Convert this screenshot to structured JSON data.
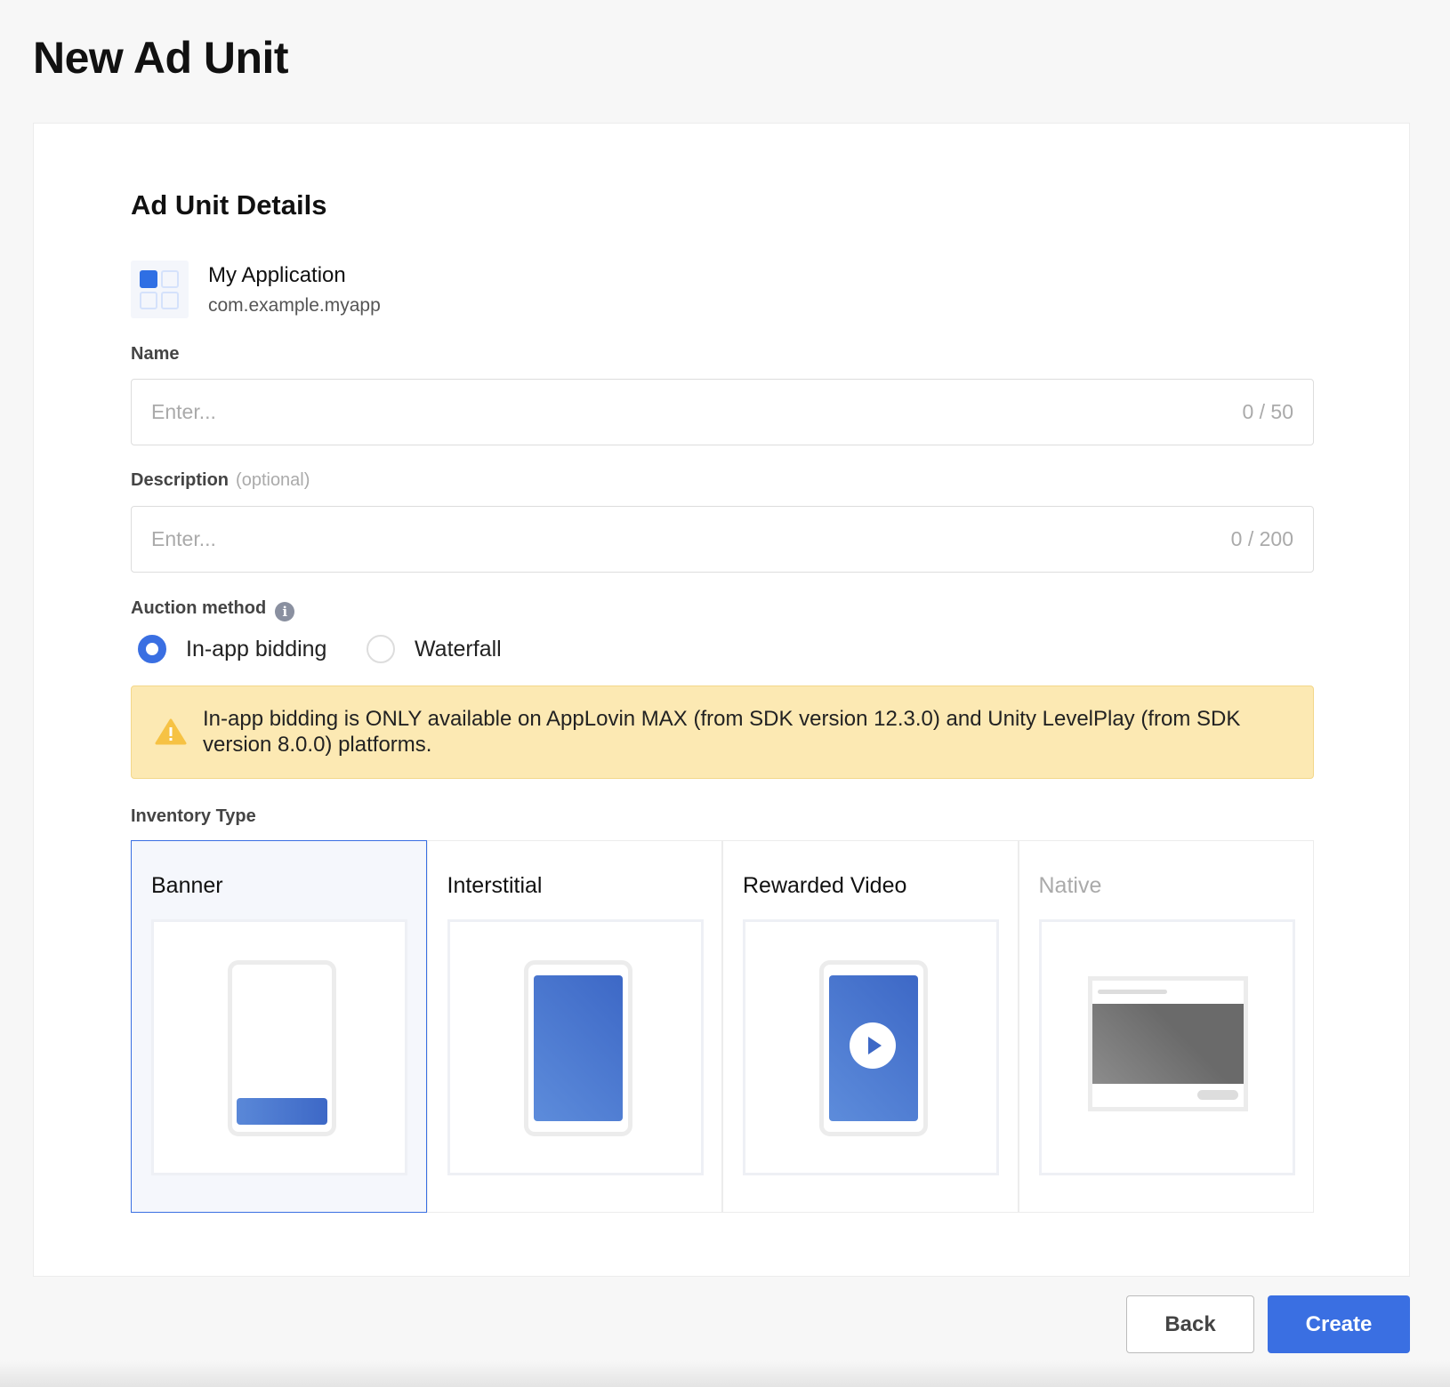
{
  "page": {
    "title": "New Ad Unit"
  },
  "section": {
    "title": "Ad Unit Details"
  },
  "app": {
    "name": "My Application",
    "bundle_id": "com.example.myapp",
    "icon": "app-grid-icon"
  },
  "name_field": {
    "label": "Name",
    "placeholder": "Enter...",
    "value": "",
    "counter": "0 / 50"
  },
  "description_field": {
    "label": "Description",
    "optional": "(optional)",
    "placeholder": "Enter...",
    "value": "",
    "counter": "0 / 200"
  },
  "auction": {
    "label": "Auction method",
    "info_icon": "info-icon",
    "options": [
      {
        "label": "In-app bidding",
        "selected": true
      },
      {
        "label": "Waterfall",
        "selected": false
      }
    ]
  },
  "warning": {
    "icon": "warning-icon",
    "text": "In-app bidding is ONLY available on AppLovin MAX (from SDK version 12.3.0) and Unity LevelPlay (from SDK version 8.0.0) platforms."
  },
  "inventory": {
    "label": "Inventory Type",
    "options": [
      {
        "label": "Banner",
        "selected": true
      },
      {
        "label": "Interstitial"
      },
      {
        "label": "Rewarded Video"
      },
      {
        "label": "Native",
        "disabled": true
      }
    ]
  },
  "actions": {
    "back": "Back",
    "create": "Create"
  },
  "colors": {
    "accent": "#3a6fe2",
    "warning_bg": "#fce9b3"
  }
}
